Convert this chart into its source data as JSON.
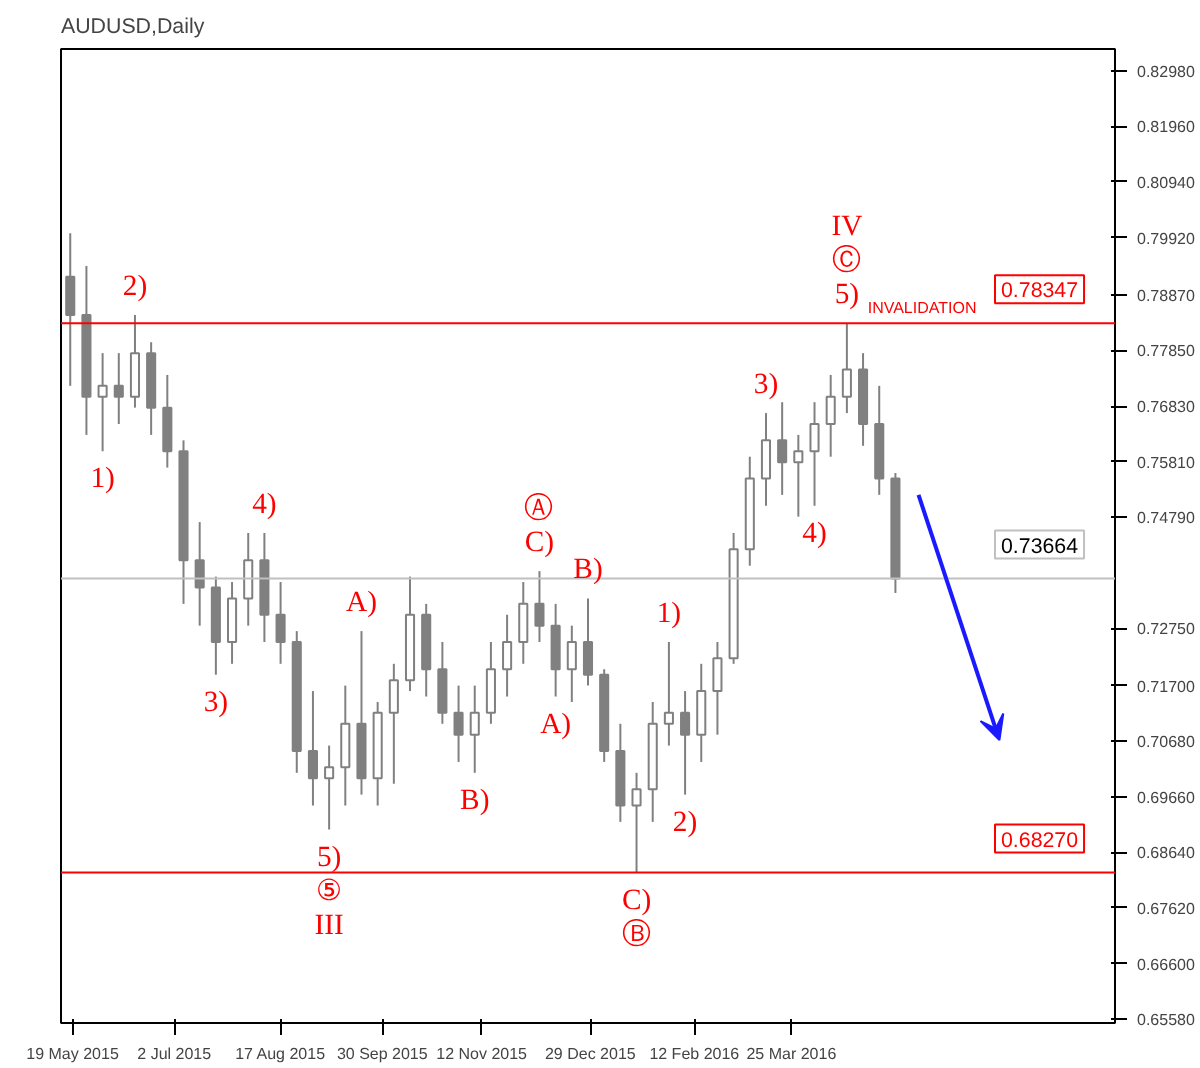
{
  "chart_data": {
    "type": "candlestick",
    "title": "AUDUSD,Daily",
    "color": "#808080",
    "x": [
      "2015-05-18",
      "2015-05-25",
      "2015-06-01",
      "2015-06-08",
      "2015-06-15",
      "2015-06-22",
      "2015-06-29",
      "2015-07-06",
      "2015-07-13",
      "2015-07-20",
      "2015-07-27",
      "2015-08-03",
      "2015-08-10",
      "2015-08-17",
      "2015-08-24",
      "2015-08-31",
      "2015-09-07",
      "2015-09-14",
      "2015-09-21",
      "2015-09-28",
      "2015-10-05",
      "2015-10-12",
      "2015-10-19",
      "2015-10-26",
      "2015-11-02",
      "2015-11-09",
      "2015-11-16",
      "2015-11-23",
      "2015-11-30",
      "2015-12-07",
      "2015-12-14",
      "2015-12-21",
      "2015-12-28",
      "2016-01-04",
      "2016-01-11",
      "2016-01-18",
      "2016-01-25",
      "2016-02-01",
      "2016-02-08",
      "2016-02-15",
      "2016-02-22",
      "2016-02-29",
      "2016-03-07",
      "2016-03-14",
      "2016-03-21",
      "2016-03-28",
      "2016-04-04",
      "2016-04-11",
      "2016-04-18",
      "2016-04-25",
      "2016-05-02",
      "2016-05-09"
    ],
    "ohlc": [
      [
        0.792,
        0.8,
        0.772,
        0.785
      ],
      [
        0.785,
        0.794,
        0.763,
        0.77
      ],
      [
        0.77,
        0.778,
        0.76,
        0.772
      ],
      [
        0.772,
        0.778,
        0.765,
        0.77
      ],
      [
        0.77,
        0.785,
        0.768,
        0.778
      ],
      [
        0.778,
        0.78,
        0.763,
        0.768
      ],
      [
        0.768,
        0.774,
        0.757,
        0.76
      ],
      [
        0.76,
        0.762,
        0.732,
        0.74
      ],
      [
        0.74,
        0.747,
        0.728,
        0.735
      ],
      [
        0.735,
        0.737,
        0.719,
        0.725
      ],
      [
        0.725,
        0.736,
        0.721,
        0.733
      ],
      [
        0.733,
        0.745,
        0.728,
        0.74
      ],
      [
        0.74,
        0.745,
        0.725,
        0.73
      ],
      [
        0.73,
        0.736,
        0.721,
        0.725
      ],
      [
        0.725,
        0.727,
        0.701,
        0.705
      ],
      [
        0.705,
        0.716,
        0.695,
        0.7
      ],
      [
        0.7,
        0.706,
        0.6906,
        0.702
      ],
      [
        0.702,
        0.717,
        0.695,
        0.71
      ],
      [
        0.71,
        0.727,
        0.697,
        0.7
      ],
      [
        0.7,
        0.714,
        0.695,
        0.712
      ],
      [
        0.712,
        0.721,
        0.699,
        0.718
      ],
      [
        0.718,
        0.737,
        0.716,
        0.73
      ],
      [
        0.73,
        0.732,
        0.715,
        0.72
      ],
      [
        0.72,
        0.725,
        0.71,
        0.712
      ],
      [
        0.712,
        0.717,
        0.703,
        0.708
      ],
      [
        0.708,
        0.717,
        0.701,
        0.712
      ],
      [
        0.712,
        0.725,
        0.71,
        0.72
      ],
      [
        0.72,
        0.73,
        0.715,
        0.725
      ],
      [
        0.725,
        0.736,
        0.721,
        0.732
      ],
      [
        0.732,
        0.738,
        0.725,
        0.728
      ],
      [
        0.728,
        0.732,
        0.715,
        0.72
      ],
      [
        0.72,
        0.728,
        0.714,
        0.725
      ],
      [
        0.725,
        0.733,
        0.717,
        0.719
      ],
      [
        0.719,
        0.72,
        0.703,
        0.705
      ],
      [
        0.705,
        0.71,
        0.692,
        0.695
      ],
      [
        0.695,
        0.701,
        0.6827,
        0.698
      ],
      [
        0.698,
        0.714,
        0.692,
        0.71
      ],
      [
        0.71,
        0.725,
        0.706,
        0.712
      ],
      [
        0.712,
        0.716,
        0.697,
        0.708
      ],
      [
        0.708,
        0.721,
        0.703,
        0.716
      ],
      [
        0.716,
        0.725,
        0.708,
        0.722
      ],
      [
        0.722,
        0.745,
        0.721,
        0.742
      ],
      [
        0.742,
        0.759,
        0.739,
        0.755
      ],
      [
        0.755,
        0.767,
        0.75,
        0.762
      ],
      [
        0.762,
        0.769,
        0.752,
        0.758
      ],
      [
        0.758,
        0.763,
        0.748,
        0.76
      ],
      [
        0.76,
        0.769,
        0.75,
        0.765
      ],
      [
        0.765,
        0.774,
        0.759,
        0.77
      ],
      [
        0.77,
        0.78347,
        0.767,
        0.775
      ],
      [
        0.775,
        0.778,
        0.761,
        0.765
      ],
      [
        0.765,
        0.772,
        0.752,
        0.755
      ],
      [
        0.755,
        0.756,
        0.734,
        0.73664
      ]
    ],
    "xlim": [
      "2015-05-14",
      "2016-08-12"
    ],
    "ylim": [
      0.6551,
      0.8338
    ],
    "xticks": [
      {
        "value": "2015-05-19",
        "label": "19 May 2015"
      },
      {
        "value": "2015-07-02",
        "label": "2 Jul 2015"
      },
      {
        "value": "2015-08-17",
        "label": "17 Aug 2015"
      },
      {
        "value": "2015-09-30",
        "label": "30 Sep 2015"
      },
      {
        "value": "2015-11-12",
        "label": "12 Nov 2015"
      },
      {
        "value": "2015-12-29",
        "label": "29 Dec 2015"
      },
      {
        "value": "2016-02-12",
        "label": "12 Feb 2016"
      },
      {
        "value": "2016-03-25",
        "label": "25 Mar 2016"
      }
    ],
    "yticks": [
      {
        "value": 0.8298,
        "label": "0.82980"
      },
      {
        "value": 0.8196,
        "label": "0.81960"
      },
      {
        "value": 0.8094,
        "label": "0.80940"
      },
      {
        "value": 0.7992,
        "label": "0.79920"
      },
      {
        "value": 0.7887,
        "label": "0.78870"
      },
      {
        "value": 0.7785,
        "label": "0.77850"
      },
      {
        "value": 0.7683,
        "label": "0.76830"
      },
      {
        "value": 0.7581,
        "label": "0.75810"
      },
      {
        "value": 0.7479,
        "label": "0.74790"
      },
      {
        "value": 0.7275,
        "label": "0.72750"
      },
      {
        "value": 0.717,
        "label": "0.71700"
      },
      {
        "value": 0.7068,
        "label": "0.70680"
      },
      {
        "value": 0.6966,
        "label": "0.69660"
      },
      {
        "value": 0.6864,
        "label": "0.68640"
      },
      {
        "value": 0.6762,
        "label": "0.67620"
      },
      {
        "value": 0.666,
        "label": "0.66600"
      },
      {
        "value": 0.6558,
        "label": "0.65580"
      }
    ],
    "ref_lines": [
      {
        "axis": "y",
        "value": 0.73664,
        "label": "0.73664",
        "color": "#c0c0c0"
      },
      {
        "axis": "y",
        "value": 0.78347,
        "label": "0.78347",
        "color": "#ff0000"
      },
      {
        "axis": "y",
        "value": 0.6827,
        "label": "0.68270",
        "color": "#ff0000"
      }
    ],
    "annotations": [
      {
        "text": "1)",
        "x": "2015-06-01",
        "y": 0.76
      },
      {
        "text": "2)",
        "x": "2015-06-15",
        "y": 0.785
      },
      {
        "text": "3)",
        "x": "2015-07-20",
        "y": 0.719
      },
      {
        "text": "4)",
        "x": "2015-08-10",
        "y": 0.745
      },
      {
        "text": "5)",
        "x": "2015-09-07",
        "y": 0.6906
      },
      {
        "text": "⑤",
        "x": "2015-09-07",
        "y": 0.6906
      },
      {
        "text": "III",
        "x": "2015-09-07",
        "y": 0.6906
      },
      {
        "text": "A)",
        "x": "2015-09-21",
        "y": 0.727
      },
      {
        "text": "B)",
        "x": "2015-11-09",
        "y": 0.701
      },
      {
        "text": "C)",
        "x": "2015-12-07",
        "y": 0.738
      },
      {
        "text": "Ⓐ",
        "x": "2015-12-07",
        "y": 0.738
      },
      {
        "text": "A)",
        "x": "2015-12-14",
        "y": 0.715
      },
      {
        "text": "B)",
        "x": "2015-12-28",
        "y": 0.733
      },
      {
        "text": "C)",
        "x": "2016-01-18",
        "y": 0.6827
      },
      {
        "text": "Ⓑ",
        "x": "2016-01-18",
        "y": 0.6827
      },
      {
        "text": "1)",
        "x": "2016-02-01",
        "y": 0.725
      },
      {
        "text": "2)",
        "x": "2016-02-08",
        "y": 0.697
      },
      {
        "text": "3)",
        "x": "2016-03-14",
        "y": 0.767
      },
      {
        "text": "4)",
        "x": "2016-04-04",
        "y": 0.75
      },
      {
        "text": "5)",
        "x": "2016-04-18",
        "y": 0.78347
      },
      {
        "text": "Ⓒ",
        "x": "2016-04-18",
        "y": 0.78347
      },
      {
        "text": "IV",
        "x": "2016-04-18",
        "y": 0.78347
      },
      {
        "text": "INVALIDATION",
        "x": "2016-04-27",
        "y": 0.78347
      }
    ]
  }
}
